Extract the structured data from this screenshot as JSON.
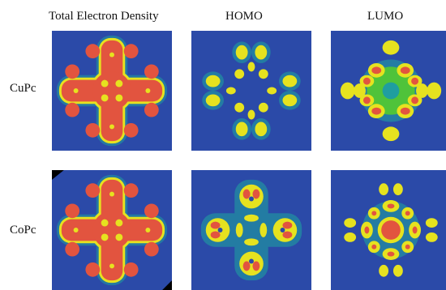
{
  "columns": [
    "Total Electron Density",
    "HOMO",
    "LUMO"
  ],
  "rows": [
    "CuPc",
    "CoPc"
  ],
  "colors": {
    "background": "#2b4aa8",
    "halo": "#1f9ea0",
    "mid": "#4fc33a",
    "rim": "#e6e21f",
    "core": "#e2543f"
  }
}
